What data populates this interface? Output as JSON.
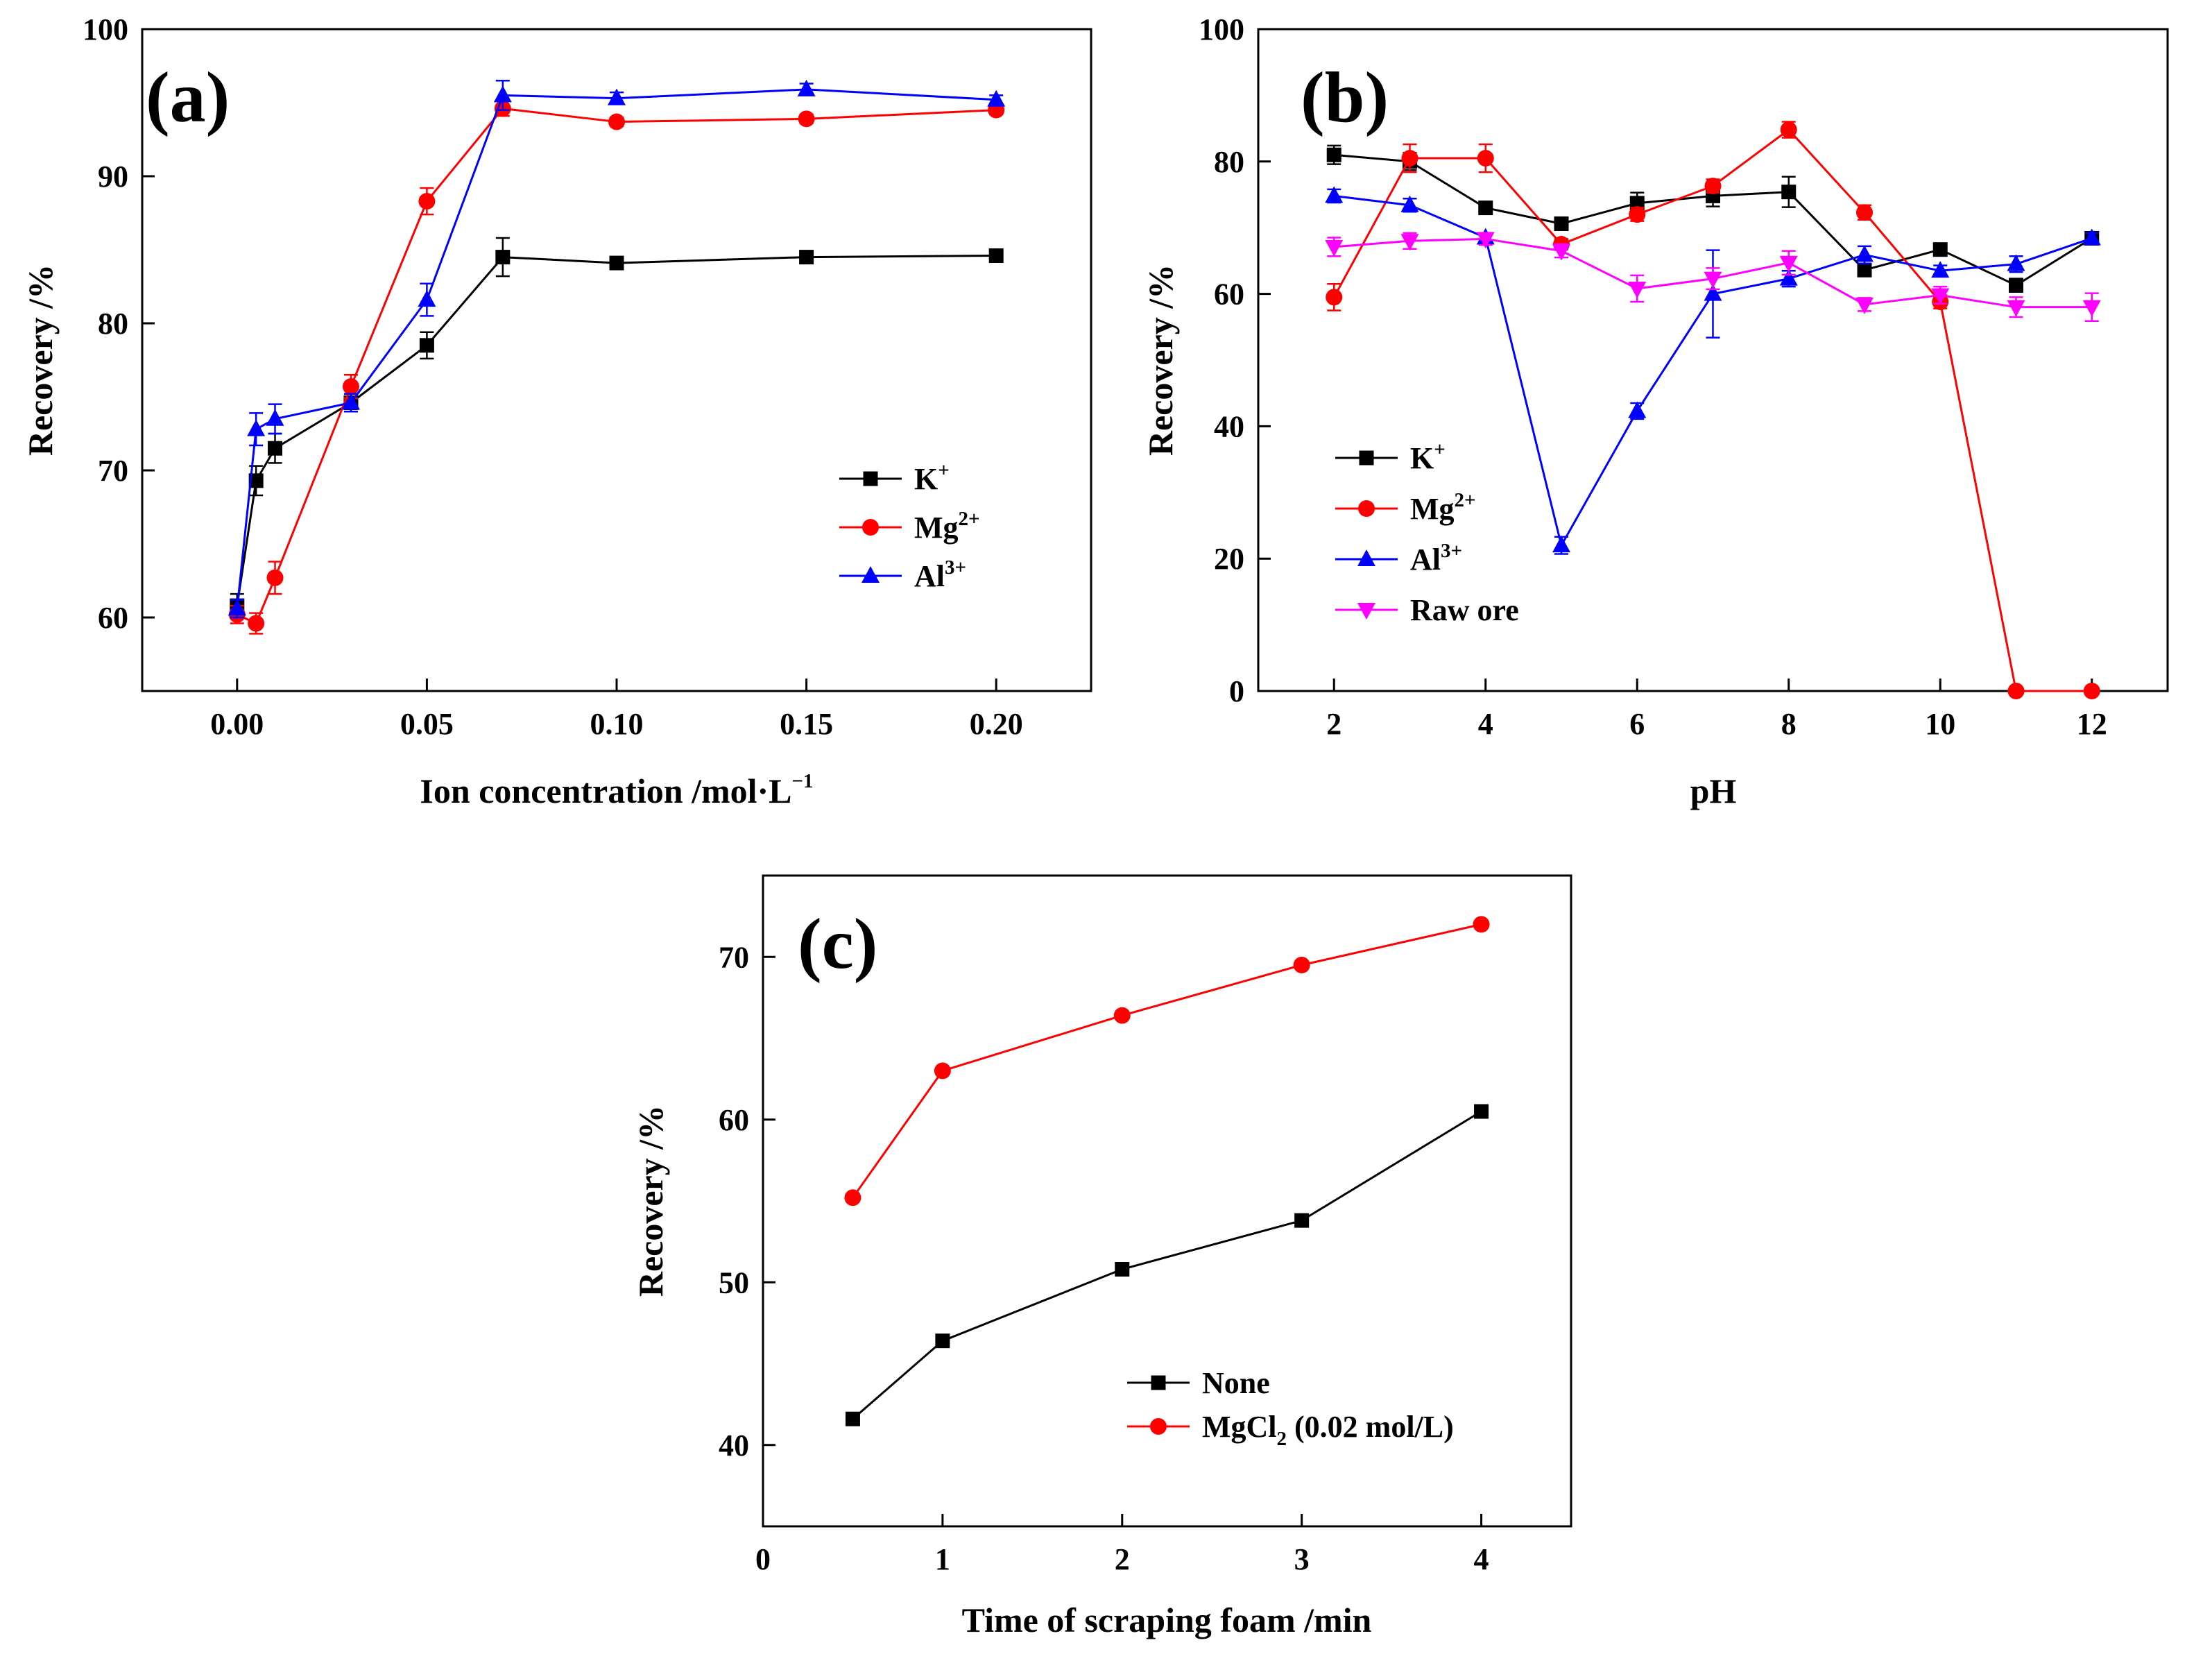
{
  "chart_data": [
    {
      "id": "a",
      "type": "line",
      "panel_label": "(a)",
      "xlabel_main": "Ion concentration /mol·L",
      "xlabel_sup": "−1",
      "ylabel": "Recovery /%",
      "xlim": [
        -0.025,
        0.225
      ],
      "ylim": [
        55,
        100
      ],
      "xticks": [
        0.0,
        0.05,
        0.1,
        0.15,
        0.2
      ],
      "xtick_labels": [
        "0.00",
        "0.05",
        "0.10",
        "0.15",
        "0.20"
      ],
      "yticks": [
        60,
        70,
        80,
        90,
        100
      ],
      "ytick_labels": [
        "60",
        "70",
        "80",
        "90",
        "100"
      ],
      "legend_position": "center-right",
      "series": [
        {
          "name": "K",
          "sup": "+",
          "color": "#000000",
          "marker": "square",
          "x": [
            0,
            0.005,
            0.01,
            0.03,
            0.05,
            0.07,
            0.1,
            0.15,
            0.2
          ],
          "y": [
            60.8,
            69.3,
            71.5,
            74.6,
            78.5,
            84.5,
            84.1,
            84.5,
            84.6
          ],
          "err": [
            0.8,
            1.0,
            1.0,
            0.6,
            0.9,
            1.3,
            0.3,
            0.3,
            0.3
          ]
        },
        {
          "name": "Mg",
          "sup": "2+",
          "color": "#ff0000",
          "marker": "circle",
          "x": [
            0,
            0.005,
            0.01,
            0.03,
            0.05,
            0.07,
            0.1,
            0.15,
            0.2
          ],
          "y": [
            60.2,
            59.6,
            62.7,
            75.7,
            88.3,
            94.6,
            93.7,
            93.9,
            94.5
          ],
          "err": [
            0.6,
            0.7,
            1.1,
            0.8,
            0.9,
            0.5,
            0.3,
            0.3,
            0.3
          ]
        },
        {
          "name": "Al",
          "sup": "3+",
          "color": "#0000ff",
          "marker": "triangle-up",
          "x": [
            0,
            0.005,
            0.01,
            0.03,
            0.05,
            0.07,
            0.1,
            0.15,
            0.2
          ],
          "y": [
            60.6,
            72.8,
            73.5,
            74.6,
            81.6,
            95.5,
            95.3,
            95.9,
            95.2
          ],
          "err": [
            0.6,
            1.1,
            1.0,
            0.6,
            1.1,
            1.0,
            0.4,
            0.4,
            0.3
          ]
        }
      ]
    },
    {
      "id": "b",
      "type": "line",
      "panel_label": "(b)",
      "xlabel_main": "pH",
      "xlabel_sup": "",
      "ylabel": "Recovery /%",
      "xlim": [
        1,
        13
      ],
      "ylim": [
        0,
        100
      ],
      "xticks": [
        2,
        4,
        6,
        8,
        10,
        12
      ],
      "xtick_labels": [
        "2",
        "4",
        "6",
        "8",
        "10",
        "12"
      ],
      "yticks": [
        0,
        20,
        40,
        60,
        80,
        100
      ],
      "ytick_labels": [
        "0",
        "20",
        "40",
        "60",
        "80",
        "100"
      ],
      "legend_position": "lower-left",
      "series": [
        {
          "name": "K",
          "sup": "+",
          "color": "#000000",
          "marker": "square",
          "x": [
            2,
            3,
            4,
            5,
            6,
            7,
            8,
            9,
            10,
            11,
            12
          ],
          "y": [
            81.0,
            80.0,
            73.0,
            70.6,
            73.7,
            74.8,
            75.4,
            63.6,
            66.7,
            61.3,
            68.4
          ],
          "err": [
            1.4,
            1.3,
            0.5,
            0.7,
            1.6,
            1.6,
            2.3,
            0.8,
            0.6,
            1.0,
            0.6
          ]
        },
        {
          "name": "Mg",
          "sup": "2+",
          "color": "#ff0000",
          "marker": "circle",
          "x": [
            2,
            3,
            4,
            5,
            6,
            7,
            8,
            9,
            10,
            11,
            12
          ],
          "y": [
            59.5,
            80.5,
            80.5,
            67.5,
            72.0,
            76.3,
            84.8,
            72.3,
            58.8,
            0,
            0
          ],
          "err": [
            2.0,
            2.1,
            2.1,
            0.8,
            1.0,
            1.0,
            1.2,
            1.1,
            1.0,
            0.3,
            0.3
          ]
        },
        {
          "name": "Al",
          "sup": "3+",
          "color": "#0000ff",
          "marker": "triangle-up",
          "x": [
            2,
            3,
            4,
            5,
            6,
            7,
            8,
            9,
            10,
            11,
            12
          ],
          "y": [
            74.8,
            73.4,
            68.5,
            22.0,
            42.3,
            60.0,
            62.3,
            65.9,
            63.5,
            64.5,
            68.4
          ],
          "err": [
            1.0,
            1.0,
            0.5,
            1.3,
            1.2,
            6.6,
            1.2,
            1.3,
            0.8,
            1.2,
            0.8
          ]
        },
        {
          "name": "Raw ore",
          "sup": "",
          "color": "#ff00ff",
          "marker": "triangle-down",
          "x": [
            2,
            3,
            4,
            5,
            6,
            7,
            8,
            9,
            10,
            11,
            12
          ],
          "y": [
            67.1,
            68.0,
            68.3,
            66.5,
            60.8,
            62.3,
            64.7,
            58.4,
            59.8,
            58.0,
            58.0
          ],
          "err": [
            1.4,
            1.2,
            0.9,
            1.0,
            2.0,
            1.6,
            1.8,
            1.0,
            1.3,
            1.5,
            2.1
          ]
        }
      ]
    },
    {
      "id": "c",
      "type": "line",
      "panel_label": "(c)",
      "xlabel_main": "Time of scraping foam /min",
      "xlabel_sup": "",
      "ylabel": "Recovery /%",
      "xlim": [
        0,
        4.5
      ],
      "ylim": [
        35,
        75
      ],
      "xticks": [
        0,
        1,
        2,
        3,
        4
      ],
      "xtick_labels": [
        "0",
        "1",
        "2",
        "3",
        "4"
      ],
      "yticks": [
        40,
        50,
        60,
        70
      ],
      "ytick_labels": [
        "40",
        "50",
        "60",
        "70"
      ],
      "legend_position": "lower-right",
      "series": [
        {
          "name": "None",
          "sub": "",
          "tail": "",
          "color": "#000000",
          "marker": "square",
          "x": [
            0.5,
            1,
            2,
            3,
            4
          ],
          "y": [
            41.6,
            46.4,
            50.8,
            53.8,
            60.5
          ]
        },
        {
          "name": "MgCl",
          "sub": "2",
          "tail": " (0.02 mol/L)",
          "color": "#ff0000",
          "marker": "circle",
          "x": [
            0.5,
            1,
            2,
            3,
            4
          ],
          "y": [
            55.2,
            63.0,
            66.4,
            69.5,
            72.0
          ]
        }
      ]
    }
  ]
}
